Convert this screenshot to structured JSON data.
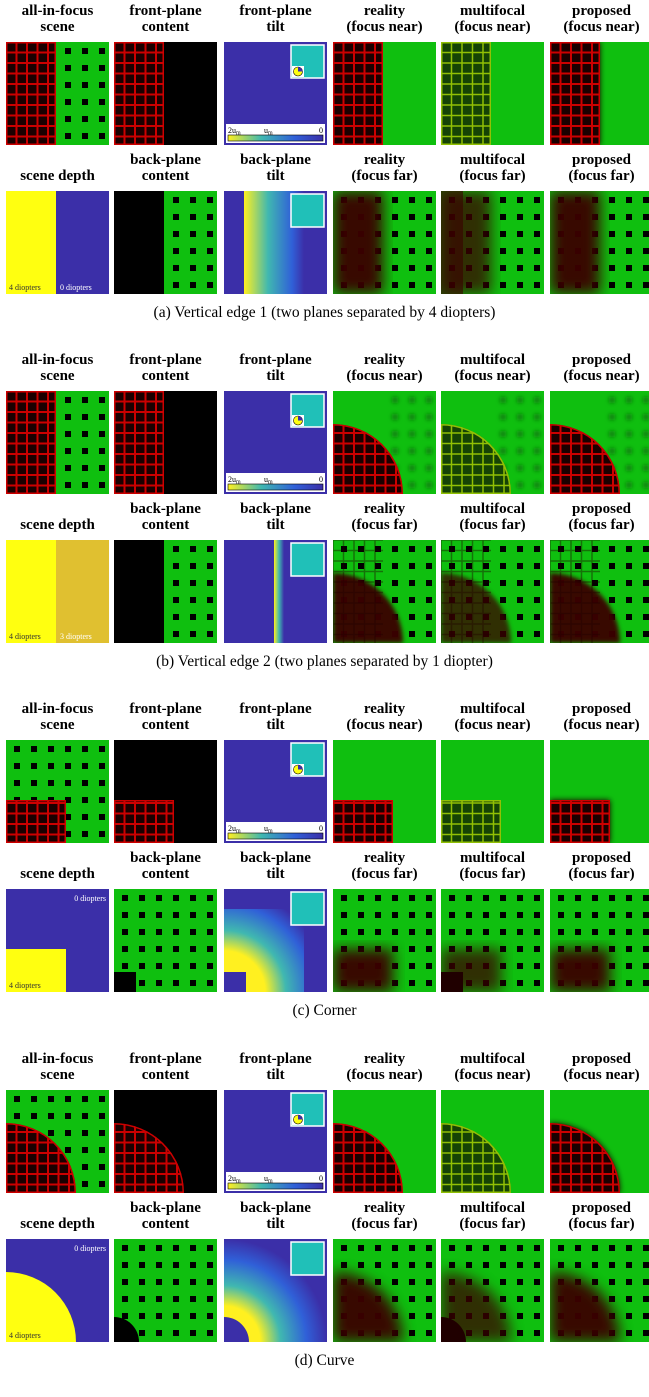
{
  "columns_front": [
    {
      "l1": "all-in-focus",
      "l2": "scene"
    },
    {
      "l1": "front-plane",
      "l2": "content"
    },
    {
      "l1": "front-plane",
      "l2": "tilt"
    },
    {
      "l1": "reality",
      "l2": "(focus near)"
    },
    {
      "l1": "multifocal",
      "l2": "(focus near)"
    },
    {
      "l1": "proposed",
      "l2": "(focus near)"
    }
  ],
  "columns_back": [
    {
      "l1": "",
      "l2": "scene depth"
    },
    {
      "l1": "back-plane",
      "l2": "content"
    },
    {
      "l1": "back-plane",
      "l2": "tilt"
    },
    {
      "l1": "reality",
      "l2": "(focus far)"
    },
    {
      "l1": "multifocal",
      "l2": "(focus far)"
    },
    {
      "l1": "proposed",
      "l2": "(focus far)"
    }
  ],
  "colorbar": {
    "left": "2u",
    "left_sub": "m",
    "mid": "u",
    "mid_sub": "m",
    "right": "0"
  },
  "sections": [
    {
      "caption": "(a) Vertical edge 1 (two planes separated by 4 diopters)",
      "depth_near": "4 diopters",
      "depth_far": "0 diopters"
    },
    {
      "caption": "(b) Vertical edge 2 (two planes separated by 1 diopter)",
      "depth_near": "4 diopters",
      "depth_far": "3 diopters"
    },
    {
      "caption": "(c) Corner",
      "depth_near": "4 diopters",
      "depth_far": "0 diopters"
    },
    {
      "caption": "(d) Curve",
      "depth_near": "4 diopters",
      "depth_far": "0 diopters"
    }
  ],
  "colors": {
    "green": "#0fbf0f",
    "red_grid": "#cc0000",
    "purple": "#3b2fa8",
    "yellow": "#ffff10",
    "teal": "#20c0b8",
    "dark_red": "#3a0000",
    "gold": "#e0c030"
  }
}
